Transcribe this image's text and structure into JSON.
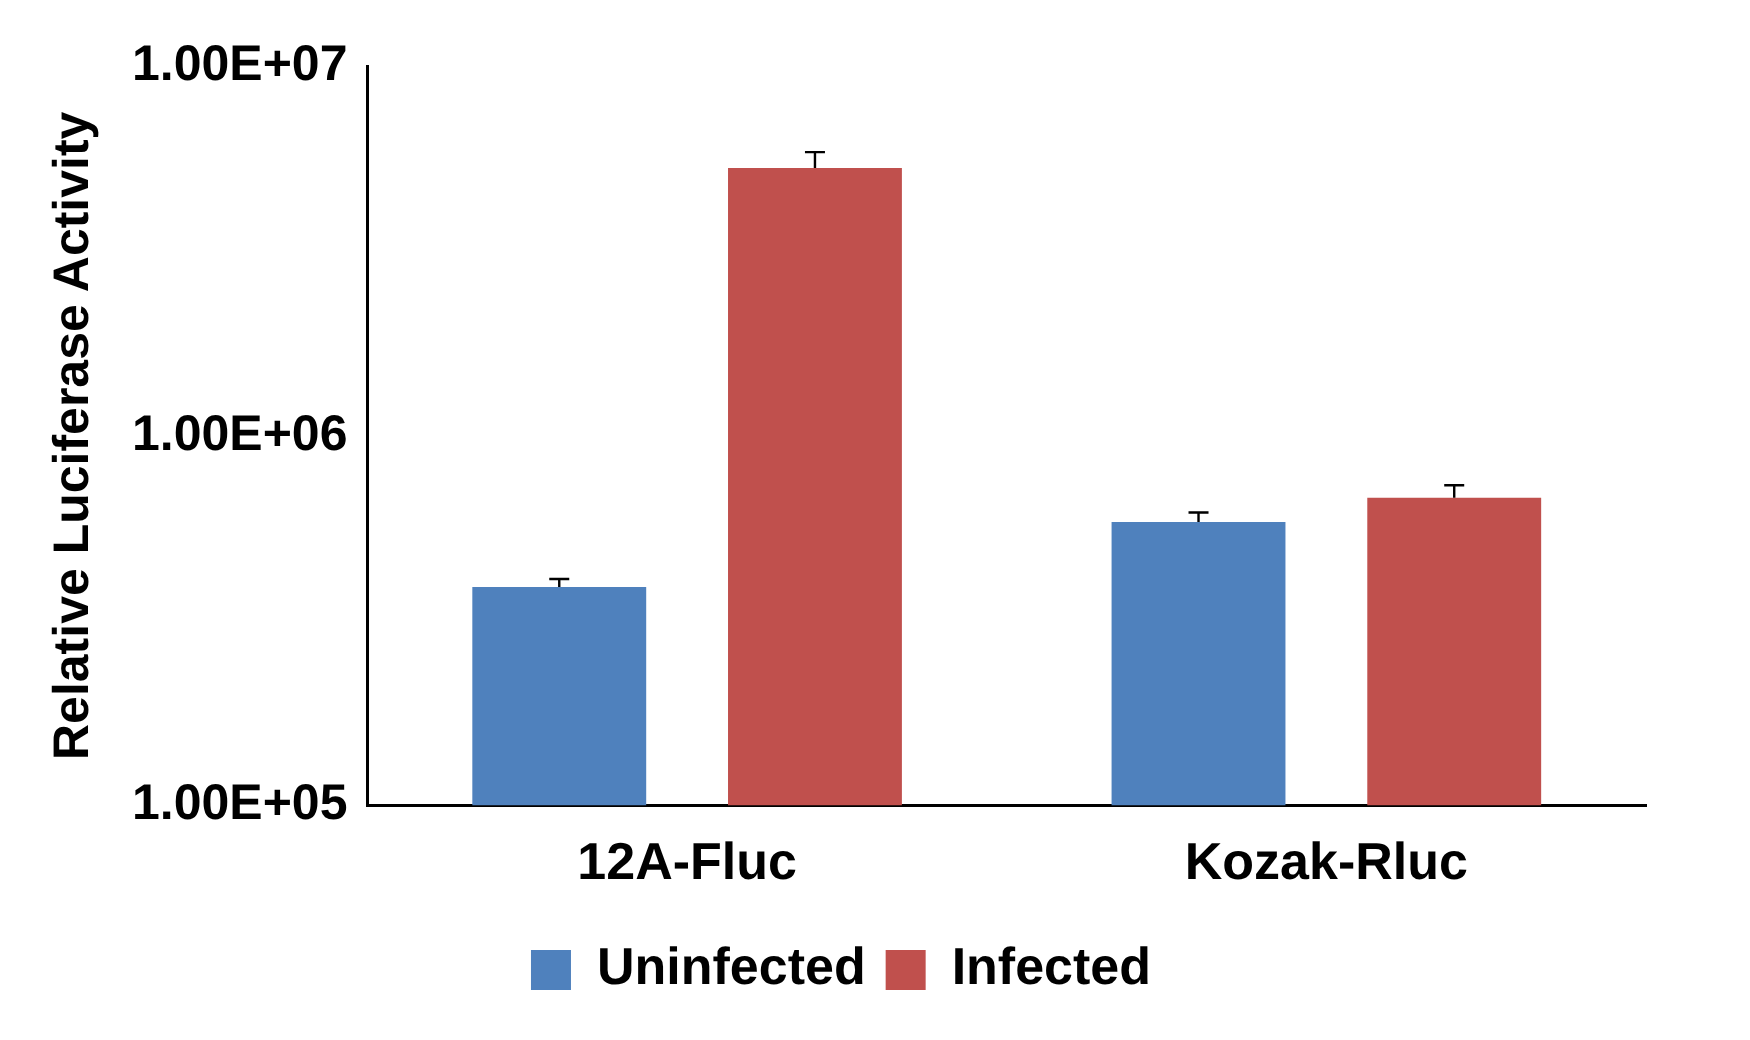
{
  "chart_data": {
    "type": "bar",
    "ylabel": "Relative Luciferase Activity",
    "categories": [
      "12A-Fluc",
      "Kozak-Rluc"
    ],
    "series": [
      {
        "name": "Uninfected",
        "color": "#4f81bd",
        "values": [
          390000,
          585000
        ],
        "errors": [
          [
            390000,
            410000
          ],
          [
            585000,
            620000
          ]
        ]
      },
      {
        "name": "Infected",
        "color": "#c0504d",
        "values": [
          5300000,
          680000
        ],
        "errors": [
          [
            5300000,
            5850000
          ],
          [
            680000,
            735000
          ]
        ]
      }
    ],
    "log": true,
    "ylim": [
      100000,
      10000000
    ],
    "yticks": [
      {
        "value": 100000,
        "label": "1.00E+05"
      },
      {
        "value": 1000000,
        "label": "1.00E+06"
      },
      {
        "value": 10000000,
        "label": "1.00E+07"
      }
    ],
    "grid": false,
    "legend": "bottom"
  }
}
